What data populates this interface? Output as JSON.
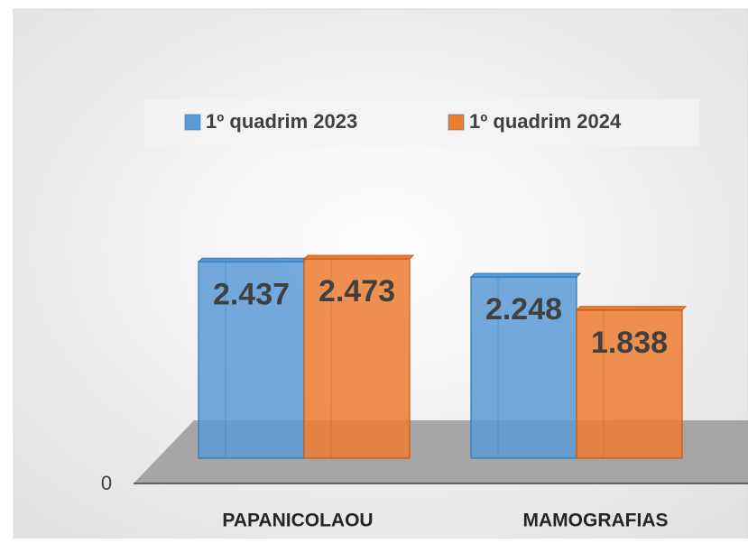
{
  "chart_data": {
    "type": "bar",
    "categories": [
      "PAPANICOLAOU",
      "MAMOGRAFIAS"
    ],
    "series": [
      {
        "name": "1º quadrim 2023",
        "color": "#5b9bd5",
        "values": [
          2437,
          2248
        ],
        "value_labels": [
          "2.437",
          "2.248"
        ]
      },
      {
        "name": "1º quadrim 2024",
        "color": "#ed7d31",
        "values": [
          2473,
          1838
        ],
        "value_labels": [
          "2.473",
          "1.838"
        ]
      }
    ],
    "ylim": [
      0,
      3000
    ],
    "yticks": [
      0
    ],
    "legend": "top"
  }
}
